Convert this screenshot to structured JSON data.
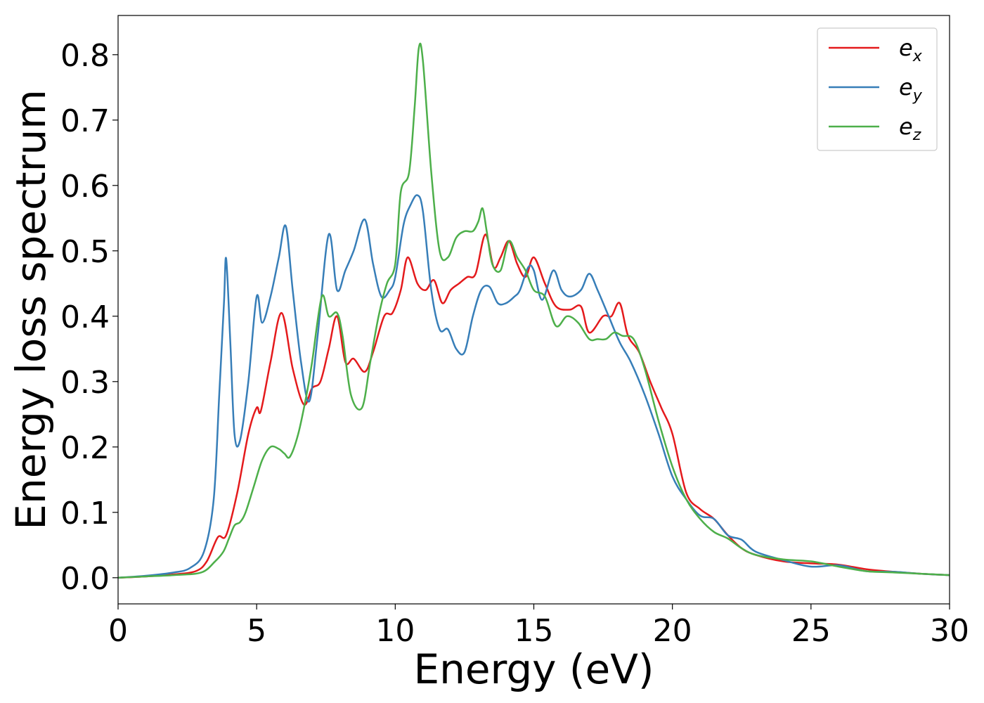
{
  "chart_data": {
    "type": "line",
    "xlabel": "Energy (eV)",
    "ylabel": "Energy loss spectrum",
    "xlim": [
      0,
      30
    ],
    "ylim": [
      -0.04,
      0.86
    ],
    "x_ticks": [
      0,
      5,
      10,
      15,
      20,
      25,
      30
    ],
    "y_ticks": [
      0.0,
      0.1,
      0.2,
      0.3,
      0.4,
      0.5,
      0.6,
      0.7,
      0.8
    ],
    "x_tick_labels": [
      "0",
      "5",
      "10",
      "15",
      "20",
      "25",
      "30"
    ],
    "y_tick_labels": [
      "0.0",
      "0.1",
      "0.2",
      "0.3",
      "0.4",
      "0.5",
      "0.6",
      "0.7",
      "0.8"
    ],
    "grid": false,
    "legend_position": "top-right",
    "series": [
      {
        "name": "e_x",
        "label_base": "e",
        "label_sub": "x",
        "color": "#e41a1c",
        "x": [
          0,
          1,
          2,
          2.8,
          3.2,
          3.6,
          3.9,
          4.3,
          4.7,
          5.0,
          5.15,
          5.5,
          5.9,
          6.3,
          6.7,
          7.0,
          7.3,
          7.6,
          7.9,
          8.2,
          8.5,
          8.9,
          9.2,
          9.6,
          9.9,
          10.2,
          10.45,
          10.8,
          11.1,
          11.4,
          11.7,
          12.0,
          12.3,
          12.6,
          12.9,
          13.25,
          13.55,
          13.8,
          14.1,
          14.4,
          14.7,
          15.0,
          15.4,
          15.8,
          16.3,
          16.7,
          17.0,
          17.5,
          17.8,
          18.1,
          18.4,
          18.8,
          19.2,
          19.6,
          20.0,
          20.5,
          21.0,
          21.5,
          22.0,
          22.5,
          23.0,
          24.0,
          25.0,
          26.0,
          27.0,
          28.0,
          29.0,
          30.0
        ],
        "y": [
          0.0,
          0.002,
          0.005,
          0.01,
          0.025,
          0.062,
          0.065,
          0.13,
          0.22,
          0.26,
          0.255,
          0.33,
          0.405,
          0.32,
          0.265,
          0.29,
          0.3,
          0.35,
          0.4,
          0.33,
          0.335,
          0.315,
          0.345,
          0.4,
          0.405,
          0.44,
          0.49,
          0.45,
          0.44,
          0.455,
          0.42,
          0.44,
          0.45,
          0.46,
          0.465,
          0.525,
          0.475,
          0.49,
          0.515,
          0.48,
          0.46,
          0.49,
          0.45,
          0.415,
          0.41,
          0.415,
          0.375,
          0.4,
          0.4,
          0.42,
          0.37,
          0.345,
          0.3,
          0.26,
          0.22,
          0.13,
          0.105,
          0.09,
          0.065,
          0.045,
          0.035,
          0.025,
          0.022,
          0.02,
          0.013,
          0.009,
          0.006,
          0.004
        ]
      },
      {
        "name": "e_y",
        "label_base": "e",
        "label_sub": "y",
        "color": "#377eb8",
        "x": [
          0,
          1,
          2,
          2.6,
          3.1,
          3.45,
          3.65,
          3.82,
          3.9,
          4.05,
          4.2,
          4.4,
          4.7,
          5.0,
          5.2,
          5.5,
          5.8,
          6.05,
          6.3,
          6.6,
          6.9,
          7.2,
          7.6,
          7.9,
          8.2,
          8.5,
          8.9,
          9.2,
          9.5,
          9.8,
          10.0,
          10.3,
          10.55,
          10.8,
          11.0,
          11.3,
          11.6,
          11.9,
          12.2,
          12.5,
          12.8,
          13.1,
          13.4,
          13.7,
          14.0,
          14.3,
          14.5,
          14.8,
          15.0,
          15.3,
          15.7,
          16.0,
          16.3,
          16.7,
          17.0,
          17.3,
          17.7,
          18.1,
          18.5,
          19.0,
          19.5,
          20.0,
          20.5,
          21.0,
          21.5,
          22.0,
          22.5,
          23.0,
          24.0,
          25.0,
          26.0,
          27.0,
          28.0,
          29.0,
          30.0
        ],
        "y": [
          0.0,
          0.003,
          0.008,
          0.015,
          0.04,
          0.12,
          0.28,
          0.42,
          0.488,
          0.36,
          0.22,
          0.21,
          0.3,
          0.43,
          0.39,
          0.43,
          0.49,
          0.538,
          0.44,
          0.33,
          0.27,
          0.37,
          0.525,
          0.44,
          0.47,
          0.5,
          0.548,
          0.48,
          0.43,
          0.44,
          0.46,
          0.54,
          0.57,
          0.585,
          0.56,
          0.44,
          0.38,
          0.38,
          0.35,
          0.345,
          0.4,
          0.44,
          0.445,
          0.42,
          0.42,
          0.43,
          0.44,
          0.475,
          0.47,
          0.425,
          0.47,
          0.44,
          0.43,
          0.44,
          0.465,
          0.44,
          0.4,
          0.36,
          0.33,
          0.28,
          0.22,
          0.155,
          0.12,
          0.095,
          0.09,
          0.065,
          0.058,
          0.04,
          0.027,
          0.017,
          0.019,
          0.01,
          0.009,
          0.006,
          0.004
        ]
      },
      {
        "name": "e_z",
        "label_base": "e",
        "label_sub": "z",
        "color": "#4daf4a",
        "x": [
          0,
          1,
          2,
          3.0,
          3.5,
          3.8,
          4.0,
          4.2,
          4.4,
          4.6,
          4.9,
          5.2,
          5.5,
          5.8,
          6.0,
          6.2,
          6.5,
          6.8,
          7.0,
          7.35,
          7.6,
          7.9,
          8.1,
          8.4,
          8.8,
          9.1,
          9.4,
          9.7,
          10.0,
          10.2,
          10.5,
          10.7,
          10.85,
          11.0,
          11.3,
          11.6,
          11.9,
          12.2,
          12.5,
          12.8,
          13.0,
          13.15,
          13.3,
          13.5,
          13.8,
          14.1,
          14.4,
          14.7,
          15.0,
          15.4,
          15.8,
          16.2,
          16.6,
          17.0,
          17.3,
          17.6,
          17.9,
          18.2,
          18.6,
          19.0,
          19.5,
          20.0,
          20.5,
          21.0,
          21.5,
          22.0,
          22.5,
          23.0,
          24.0,
          25.0,
          26.0,
          27.0,
          28.0,
          29.0,
          30.0
        ],
        "y": [
          0.0,
          0.002,
          0.004,
          0.008,
          0.025,
          0.04,
          0.06,
          0.08,
          0.085,
          0.1,
          0.14,
          0.18,
          0.2,
          0.197,
          0.19,
          0.185,
          0.22,
          0.28,
          0.33,
          0.43,
          0.4,
          0.405,
          0.37,
          0.28,
          0.26,
          0.33,
          0.4,
          0.45,
          0.48,
          0.59,
          0.62,
          0.72,
          0.81,
          0.79,
          0.62,
          0.5,
          0.49,
          0.52,
          0.53,
          0.53,
          0.545,
          0.565,
          0.53,
          0.48,
          0.47,
          0.515,
          0.49,
          0.47,
          0.44,
          0.43,
          0.385,
          0.4,
          0.39,
          0.365,
          0.365,
          0.365,
          0.375,
          0.37,
          0.365,
          0.32,
          0.24,
          0.17,
          0.12,
          0.09,
          0.07,
          0.06,
          0.045,
          0.035,
          0.028,
          0.025,
          0.017,
          0.01,
          0.008,
          0.006,
          0.004
        ]
      }
    ]
  }
}
